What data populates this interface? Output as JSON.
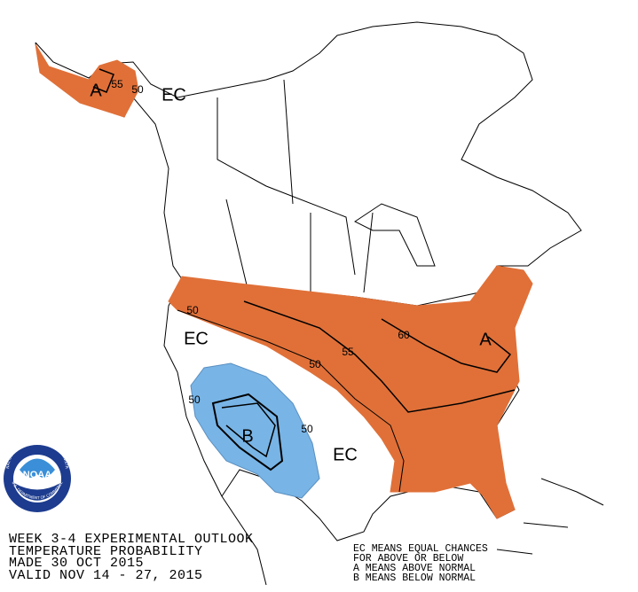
{
  "title_block": {
    "lines": [
      "WEEK 3-4 EXPERIMENTAL OUTLOOK",
      "TEMPERATURE PROBABILITY",
      "MADE  30 OCT 2015",
      "VALID  NOV 14 - 27, 2015"
    ]
  },
  "legend": {
    "lines": [
      "EC MEANS EQUAL CHANCES",
      "FOR ABOVE OR BELOW",
      "A MEANS ABOVE NORMAL",
      "B MEANS BELOW NORMAL"
    ]
  },
  "map_labels": {
    "alaska_category": "A",
    "alaska_contour_55": 55,
    "alaska_contour_50": 50,
    "alaska_ec": "EC",
    "west_contour_50": 50,
    "west_ec": "EC",
    "central_contour_50": 50,
    "central_contour_55": 55,
    "east_contour_60": 60,
    "east_category": "A",
    "southwest_contour_50": 50,
    "southwest_category": "B",
    "south_contour_50": 50,
    "south_ec": "EC"
  },
  "logo": {
    "text": "NOAA",
    "ring_top": "NATIONAL OCEANIC AND ATMOSPHERIC ADMINISTRATION",
    "ring_bottom": "U.S. DEPARTMENT OF COMMERCE"
  }
}
